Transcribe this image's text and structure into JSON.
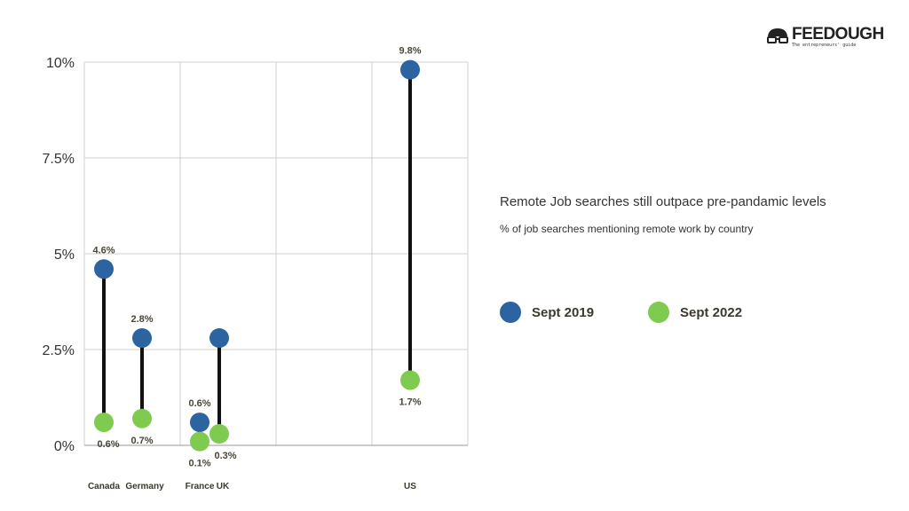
{
  "logo": {
    "name": "FEEDOUGH",
    "tagline": "The entrepreneurs' guide"
  },
  "title": "Remote Job searches still outpace pre-pandamic levels",
  "subtitle": "% of job searches mentioning remote work by country",
  "chart_data": {
    "type": "dumbbell",
    "categories": [
      "Canada",
      "Germany",
      "France",
      "UK",
      "US"
    ],
    "series": [
      {
        "name": "Sept 2019",
        "color": "#2b64a0",
        "values": [
          4.6,
          2.8,
          0.6,
          2.8,
          9.8
        ],
        "labels": [
          "4.6%",
          "2.8%",
          "0.6%",
          "",
          "9.8%"
        ]
      },
      {
        "name": "Sept 2022",
        "color": "#7ecb4f",
        "values": [
          0.6,
          0.7,
          0.1,
          0.3,
          1.7
        ],
        "labels": [
          "0.6%",
          "0.7%",
          "0.1%",
          "0.3%",
          "1.7%"
        ]
      }
    ],
    "ylim": [
      0,
      10
    ],
    "yticks": [
      0,
      2.5,
      5,
      7.5,
      10
    ],
    "ytick_labels": [
      "0%",
      "2.5%",
      "5%",
      "7.5%",
      "10%"
    ],
    "grid": true,
    "legend": "right"
  }
}
